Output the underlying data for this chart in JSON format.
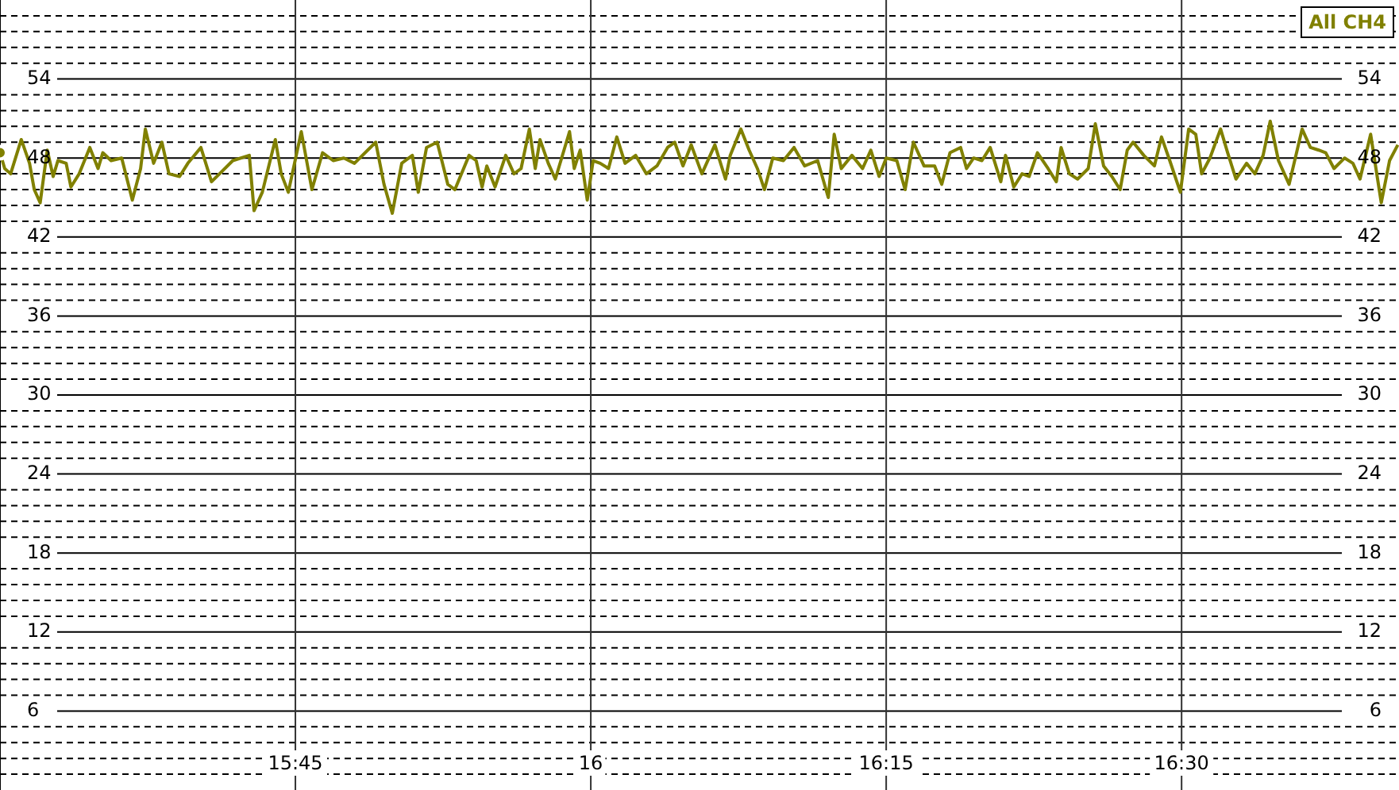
{
  "chart_data": {
    "type": "line",
    "xlim": [
      15.5,
      16.684
    ],
    "ylim": [
      0,
      60
    ],
    "xticks": [
      {
        "value": 15.75,
        "label": "15:45"
      },
      {
        "value": 16,
        "label": "16"
      },
      {
        "value": 16.25,
        "label": "16:15"
      },
      {
        "value": 16.5,
        "label": "16:30"
      }
    ],
    "yticks": [
      {
        "value": 1.2,
        "label": null
      },
      {
        "value": 2.4,
        "label": null
      },
      {
        "value": 3.6,
        "label": null
      },
      {
        "value": 4.8,
        "label": null
      },
      6,
      {
        "value": 7.2,
        "label": null
      },
      {
        "value": 8.4,
        "label": null
      },
      {
        "value": 9.6,
        "label": null
      },
      {
        "value": 10.8,
        "label": null
      },
      12,
      {
        "value": 13.2,
        "label": null
      },
      {
        "value": 14.4,
        "label": null
      },
      {
        "value": 15.6,
        "label": null
      },
      {
        "value": 16.8,
        "label": null
      },
      18,
      {
        "value": 19.2,
        "label": null
      },
      {
        "value": 20.4,
        "label": null
      },
      {
        "value": 21.6,
        "label": null
      },
      {
        "value": 22.8,
        "label": null
      },
      24,
      {
        "value": 25.2,
        "label": null
      },
      {
        "value": 26.4,
        "label": null
      },
      {
        "value": 27.6,
        "label": null
      },
      {
        "value": 28.8,
        "label": null
      },
      30,
      {
        "value": 31.2,
        "label": null
      },
      {
        "value": 32.4,
        "label": null
      },
      {
        "value": 33.6,
        "label": null
      },
      {
        "value": 34.8,
        "label": null
      },
      36,
      {
        "value": 37.2,
        "label": null
      },
      {
        "value": 38.4,
        "label": null
      },
      {
        "value": 39.6,
        "label": null
      },
      {
        "value": 40.8,
        "label": null
      },
      42,
      {
        "value": 43.2,
        "label": null
      },
      {
        "value": 44.4,
        "label": null
      },
      {
        "value": 45.6,
        "label": null
      },
      {
        "value": 46.8,
        "label": null
      },
      48,
      {
        "value": 49.2,
        "label": null
      },
      {
        "value": 50.4,
        "label": null
      },
      {
        "value": 51.6,
        "label": null
      },
      {
        "value": 52.8,
        "label": null
      },
      54,
      {
        "value": 55.2,
        "label": null
      },
      {
        "value": 56.4,
        "label": null
      },
      {
        "value": 57.6,
        "label": null
      },
      {
        "value": 58.8,
        "label": null
      }
    ],
    "y2lim": [
      0,
      60
    ],
    "y2ticks": [
      6,
      12,
      18,
      24,
      30,
      36,
      42,
      48,
      54
    ],
    "grid": true,
    "legend": "top right",
    "series": [
      {
        "name": "All CH4",
        "color": "#808000",
        "x": [
          15.5,
          15.504,
          15.509,
          15.518,
          15.525,
          15.529,
          15.534,
          15.54,
          15.545,
          15.549,
          15.556,
          15.56,
          15.567,
          15.576,
          15.583,
          15.587,
          15.594,
          15.603,
          15.612,
          15.619,
          15.623,
          15.63,
          15.637,
          15.643,
          15.652,
          15.659,
          15.67,
          15.679,
          15.688,
          15.697,
          15.711,
          15.715,
          15.722,
          15.733,
          15.738,
          15.744,
          15.755,
          15.764,
          15.773,
          15.782,
          15.791,
          15.8,
          15.818,
          15.825,
          15.832,
          15.84,
          15.849,
          15.854,
          15.861,
          15.87,
          15.879,
          15.885,
          15.897,
          15.903,
          15.908,
          15.912,
          15.919,
          15.928,
          15.935,
          15.941,
          15.948,
          15.953,
          15.957,
          15.964,
          15.97,
          15.982,
          15.986,
          15.991,
          15.997,
          16.002,
          16.008,
          16.015,
          16.022,
          16.029,
          16.038,
          16.047,
          16.056,
          16.065,
          16.071,
          16.078,
          16.085,
          16.094,
          16.105,
          16.114,
          16.118,
          16.127,
          16.134,
          16.141,
          16.147,
          16.154,
          16.163,
          16.172,
          16.181,
          16.192,
          16.201,
          16.206,
          16.212,
          16.221,
          16.23,
          16.237,
          16.244,
          16.25,
          16.259,
          16.266,
          16.273,
          16.282,
          16.291,
          16.297,
          16.304,
          16.313,
          16.318,
          16.324,
          16.331,
          16.338,
          16.347,
          16.351,
          16.358,
          16.365,
          16.371,
          16.378,
          16.387,
          16.394,
          16.398,
          16.405,
          16.412,
          16.421,
          16.427,
          16.434,
          16.441,
          16.448,
          16.454,
          16.459,
          16.468,
          16.477,
          16.483,
          16.49,
          16.499,
          16.506,
          16.512,
          16.517,
          16.524,
          16.533,
          16.539,
          16.546,
          16.555,
          16.562,
          16.569,
          16.575,
          16.582,
          16.591,
          16.602,
          16.609,
          16.616,
          16.622,
          16.629,
          16.638,
          16.645,
          16.651,
          16.66,
          16.669,
          16.676,
          16.683
        ],
        "values": [
          48.4,
          47.2,
          46.8,
          49.4,
          47.6,
          45.6,
          44.6,
          48.6,
          46.6,
          47.8,
          47.6,
          45.8,
          46.8,
          48.8,
          47.2,
          48.4,
          47.8,
          48.0,
          44.8,
          47.2,
          50.2,
          47.6,
          49.2,
          46.8,
          46.6,
          47.6,
          48.8,
          46.2,
          47.0,
          47.8,
          48.2,
          44.0,
          45.4,
          49.4,
          46.8,
          45.4,
          50.0,
          45.6,
          48.4,
          47.8,
          48.0,
          47.6,
          49.2,
          46.0,
          43.8,
          47.6,
          48.2,
          45.4,
          48.8,
          49.2,
          46.0,
          45.6,
          48.2,
          47.8,
          45.8,
          47.4,
          45.8,
          48.2,
          46.8,
          47.2,
          50.2,
          47.2,
          49.4,
          47.6,
          46.4,
          50.0,
          47.2,
          48.6,
          44.8,
          47.8,
          47.6,
          47.2,
          49.6,
          47.6,
          48.2,
          46.8,
          47.4,
          48.8,
          49.2,
          47.4,
          49.0,
          46.8,
          49.0,
          46.4,
          48.2,
          50.2,
          48.6,
          47.2,
          45.6,
          48.0,
          47.8,
          48.8,
          47.4,
          47.8,
          45.0,
          49.8,
          47.2,
          48.2,
          47.2,
          48.6,
          46.6,
          48.0,
          47.8,
          45.6,
          49.2,
          47.4,
          47.4,
          46.0,
          48.4,
          48.8,
          47.2,
          48.0,
          47.8,
          48.8,
          46.2,
          48.2,
          45.8,
          46.8,
          46.6,
          48.4,
          47.2,
          46.2,
          48.8,
          46.8,
          46.4,
          47.2,
          50.6,
          47.4,
          46.6,
          45.6,
          48.6,
          49.2,
          48.2,
          47.4,
          49.6,
          47.8,
          45.4,
          50.2,
          49.8,
          46.8,
          48.0,
          50.2,
          48.4,
          46.4,
          47.6,
          46.8,
          48.2,
          50.8,
          47.8,
          46.0,
          50.2,
          48.8,
          48.6,
          48.4,
          47.2,
          48.0,
          47.6,
          46.4,
          49.8,
          44.6,
          47.8,
          49.0
        ]
      }
    ]
  }
}
